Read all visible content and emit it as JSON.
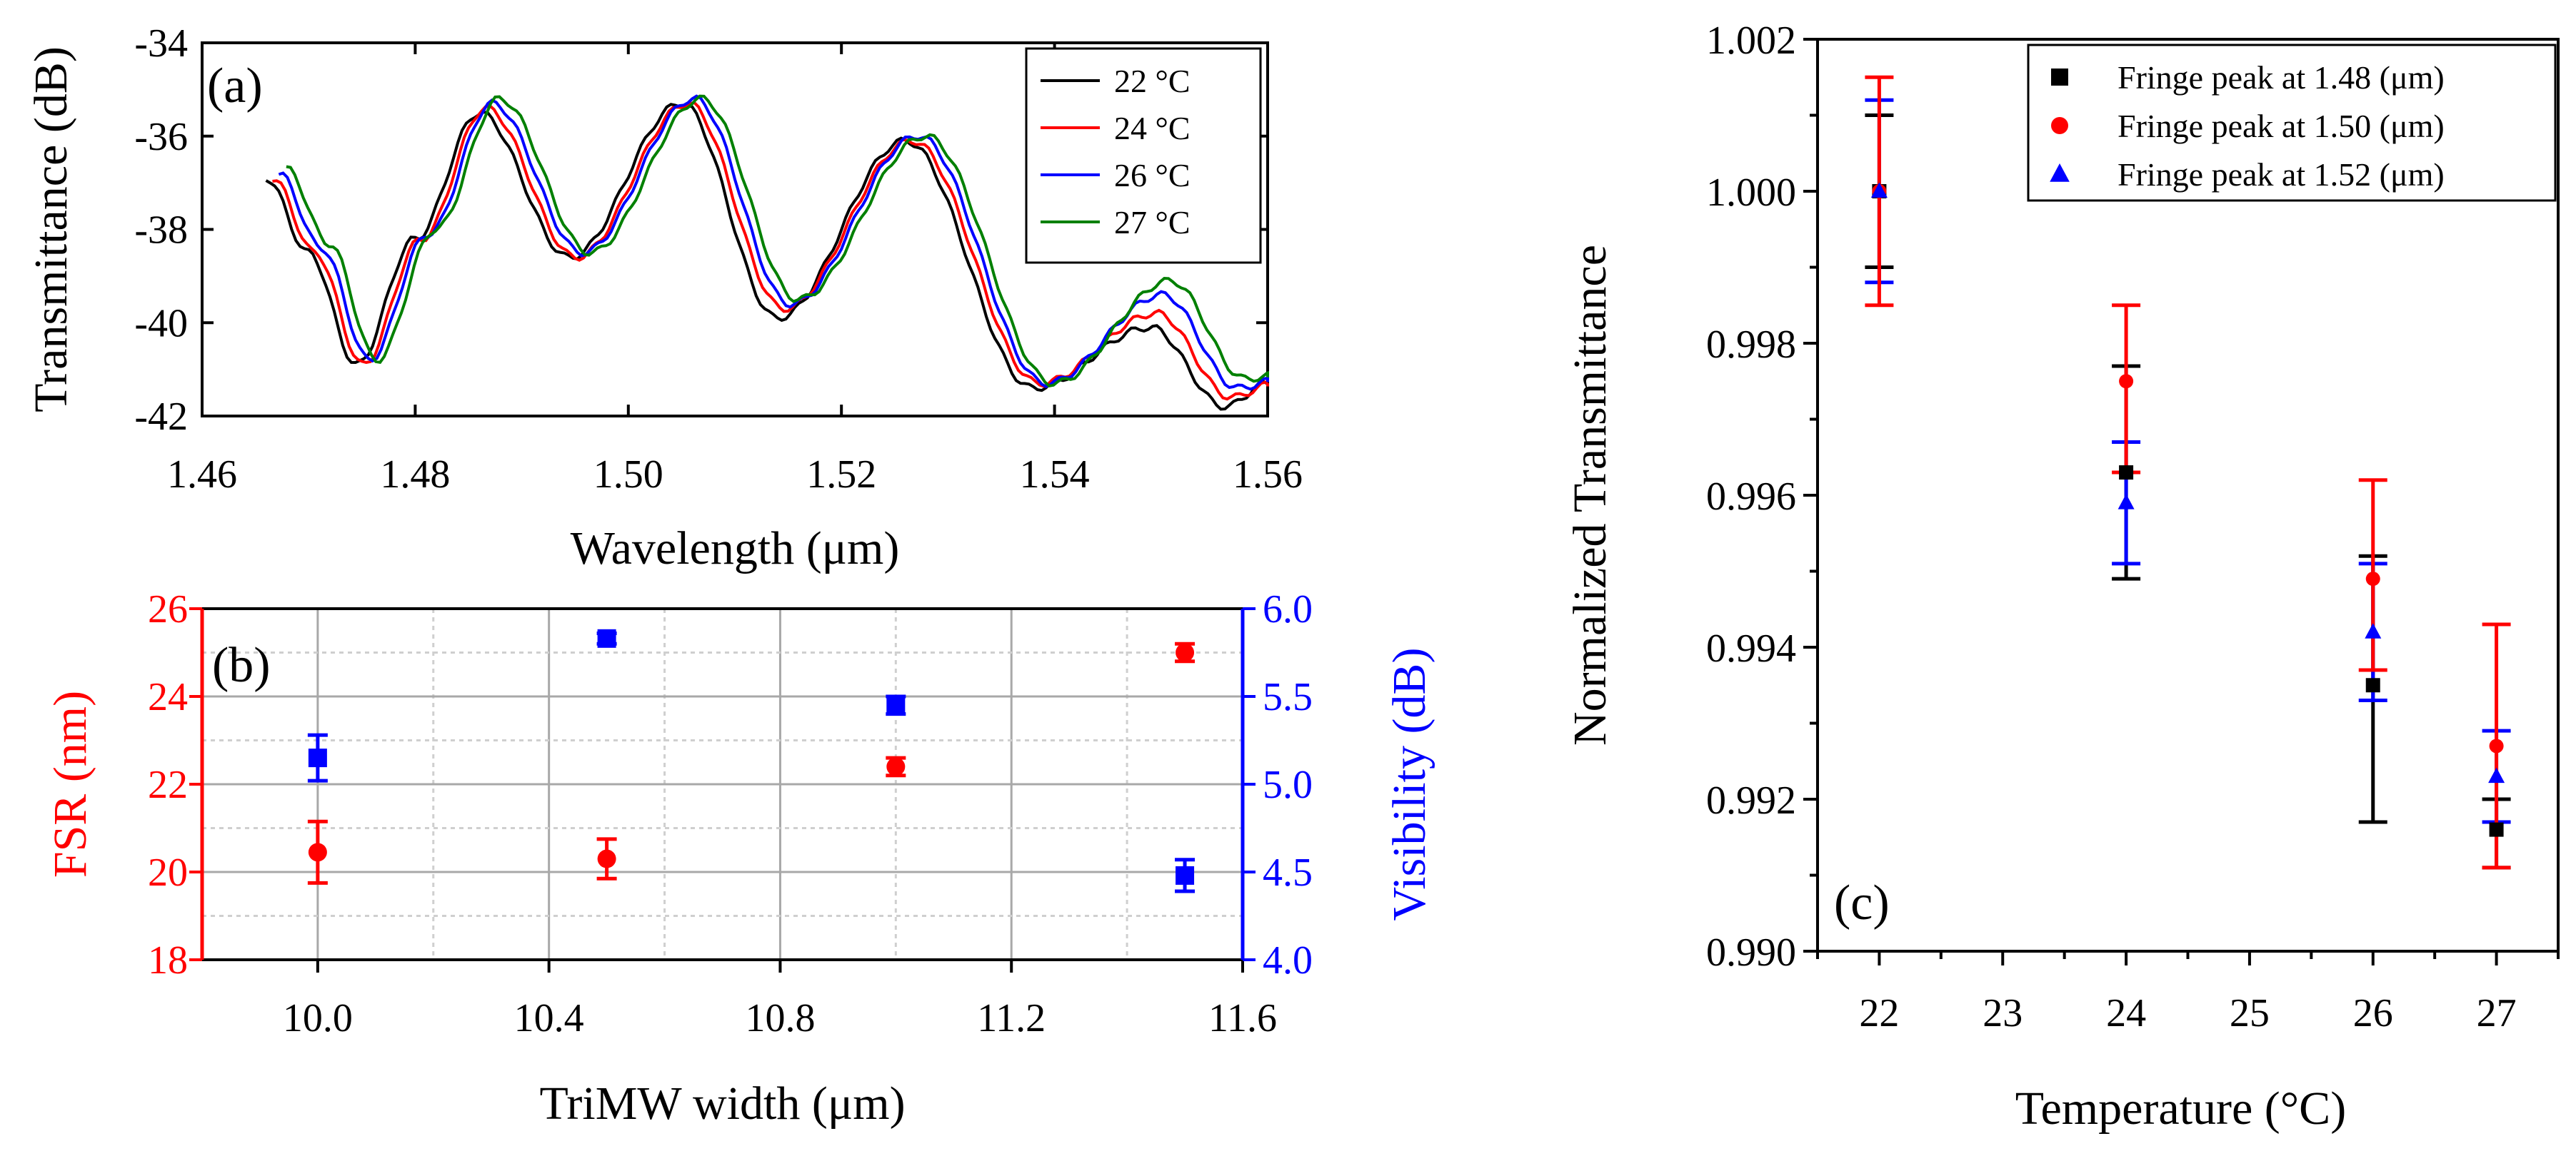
{
  "chart_data": [
    {
      "id": "a",
      "panel_label": "(a)",
      "type": "line",
      "xlabel": "Wavelength (μm)",
      "ylabel": "Transmittance (dB)",
      "xlim": [
        1.46,
        1.56
      ],
      "ylim": [
        -42,
        -34
      ],
      "xticks": [
        1.46,
        1.48,
        1.5,
        1.52,
        1.54,
        1.56
      ],
      "xtick_labels": [
        "1.46",
        "1.48",
        "1.50",
        "1.52",
        "1.54",
        "1.56"
      ],
      "yticks": [
        -42,
        -40,
        -38,
        -36,
        -34
      ],
      "ytick_labels": [
        "-42",
        "-40",
        "-38",
        "-36",
        "-34"
      ],
      "legend_position": "top-right",
      "series": [
        {
          "name": "22 °C",
          "color": "#000000",
          "shift": 0.0,
          "x": [
            1.466,
            1.47,
            1.4745,
            1.48,
            1.486,
            1.4945,
            1.505,
            1.514,
            1.526,
            1.538,
            1.549,
            1.556,
            1.56
          ],
          "y": [
            -36.9,
            -38.5,
            -40.9,
            -38.2,
            -35.5,
            -38.6,
            -35.3,
            -39.9,
            -36.1,
            -41.4,
            -40.1,
            -41.8,
            -41.3
          ]
        },
        {
          "name": "24 °C",
          "color": "#ff0000",
          "shift": 0.0006,
          "x": [
            1.466,
            1.47,
            1.4745,
            1.48,
            1.486,
            1.4945,
            1.505,
            1.514,
            1.526,
            1.538,
            1.549,
            1.556,
            1.56
          ],
          "y": [
            -36.9,
            -38.5,
            -40.9,
            -38.2,
            -35.4,
            -38.6,
            -35.3,
            -39.7,
            -36.1,
            -41.3,
            -39.8,
            -41.6,
            -41.3
          ]
        },
        {
          "name": "26 °C",
          "color": "#0000ff",
          "shift": 0.0012,
          "x": [
            1.466,
            1.47,
            1.4745,
            1.48,
            1.486,
            1.4945,
            1.505,
            1.514,
            1.526,
            1.538,
            1.549,
            1.556,
            1.56
          ],
          "y": [
            -36.8,
            -38.4,
            -40.8,
            -38.1,
            -35.3,
            -38.5,
            -35.2,
            -39.6,
            -36.0,
            -41.3,
            -39.4,
            -41.4,
            -41.2
          ]
        },
        {
          "name": "27 °C",
          "color": "#008000",
          "shift": 0.0019,
          "x": [
            1.466,
            1.47,
            1.4745,
            1.48,
            1.486,
            1.4945,
            1.505,
            1.514,
            1.526,
            1.538,
            1.549,
            1.556,
            1.56
          ],
          "y": [
            -36.7,
            -38.3,
            -40.8,
            -38.0,
            -35.2,
            -38.5,
            -35.2,
            -39.5,
            -36.0,
            -41.3,
            -39.1,
            -41.2,
            -41.1
          ]
        }
      ]
    },
    {
      "id": "b",
      "panel_label": "(b)",
      "type": "scatter",
      "xlabel": "TriMW width (μm)",
      "ylabel": "FSR (nm)",
      "y2label": "Visibility (dB)",
      "xlim": [
        9.8,
        11.6
      ],
      "ylim": [
        18,
        26
      ],
      "y2lim": [
        4.0,
        6.0
      ],
      "xticks": [
        10.0,
        10.4,
        10.8,
        11.2,
        11.6
      ],
      "xtick_labels": [
        "10.0",
        "10.4",
        "10.8",
        "11.2",
        "11.6"
      ],
      "yticks": [
        18,
        20,
        22,
        24,
        26
      ],
      "ytick_labels": [
        "18",
        "20",
        "22",
        "24",
        "26"
      ],
      "y2ticks": [
        4.0,
        4.5,
        5.0,
        5.5,
        6.0
      ],
      "y2tick_labels": [
        "4.0",
        "4.5",
        "5.0",
        "5.5",
        "6.0"
      ],
      "grid": true,
      "series": [
        {
          "name": "FSR",
          "axis": "left",
          "color": "#ff0000",
          "marker": "circle",
          "x": [
            10.0,
            10.5,
            11.0,
            11.5
          ],
          "y": [
            20.45,
            20.3,
            22.4,
            25.0
          ],
          "err": [
            0.7,
            0.45,
            0.2,
            0.2
          ]
        },
        {
          "name": "Visibility",
          "axis": "right",
          "color": "#0000ff",
          "marker": "square",
          "x": [
            10.0,
            10.5,
            11.0,
            11.5
          ],
          "y": [
            5.15,
            5.83,
            5.45,
            4.48
          ],
          "err": [
            0.13,
            0.03,
            0.05,
            0.09
          ]
        }
      ]
    },
    {
      "id": "c",
      "panel_label": "(c)",
      "type": "scatter",
      "xlabel": "Temperature (°C)",
      "ylabel": "Normalized Transmittance",
      "xlim": [
        21.5,
        27.5
      ],
      "ylim": [
        0.99,
        1.002
      ],
      "xticks": [
        22,
        23,
        24,
        25,
        26,
        27
      ],
      "xtick_labels": [
        "22",
        "23",
        "24",
        "25",
        "26",
        "27"
      ],
      "yticks": [
        0.99,
        0.992,
        0.994,
        0.996,
        0.998,
        1.0,
        1.002
      ],
      "ytick_labels": [
        "0.990",
        "0.992",
        "0.994",
        "0.996",
        "0.998",
        "1.000",
        "1.002"
      ],
      "legend_position": "top-right",
      "series": [
        {
          "name": "Fringe peak at 1.48 (μm)",
          "color": "#000000",
          "marker": "square",
          "x": [
            22,
            24,
            26,
            27
          ],
          "y": [
            1.0,
            0.9963,
            0.9935,
            0.9916
          ],
          "yerr_low": [
            0.999,
            0.9949,
            0.9917,
            0.9911
          ],
          "yerr_high": [
            1.001,
            0.9977,
            0.9952,
            0.992
          ]
        },
        {
          "name": "Fringe peak at 1.50 (μm)",
          "color": "#ff0000",
          "marker": "circle",
          "x": [
            22,
            24,
            26,
            27
          ],
          "y": [
            1.0,
            0.9975,
            0.9949,
            0.9927
          ],
          "yerr_low": [
            0.9985,
            0.9963,
            0.9937,
            0.9911
          ],
          "yerr_high": [
            1.0015,
            0.9985,
            0.9962,
            0.9943
          ]
        },
        {
          "name": "Fringe peak at 1.52 (μm)",
          "color": "#0000ff",
          "marker": "triangle",
          "x": [
            22,
            24,
            26,
            27
          ],
          "y": [
            1.0,
            0.9959,
            0.9942,
            0.9923
          ],
          "yerr_low": [
            0.9988,
            0.9951,
            0.9933,
            0.9917
          ],
          "yerr_high": [
            1.0012,
            0.9967,
            0.9951,
            0.9929
          ]
        }
      ]
    }
  ]
}
